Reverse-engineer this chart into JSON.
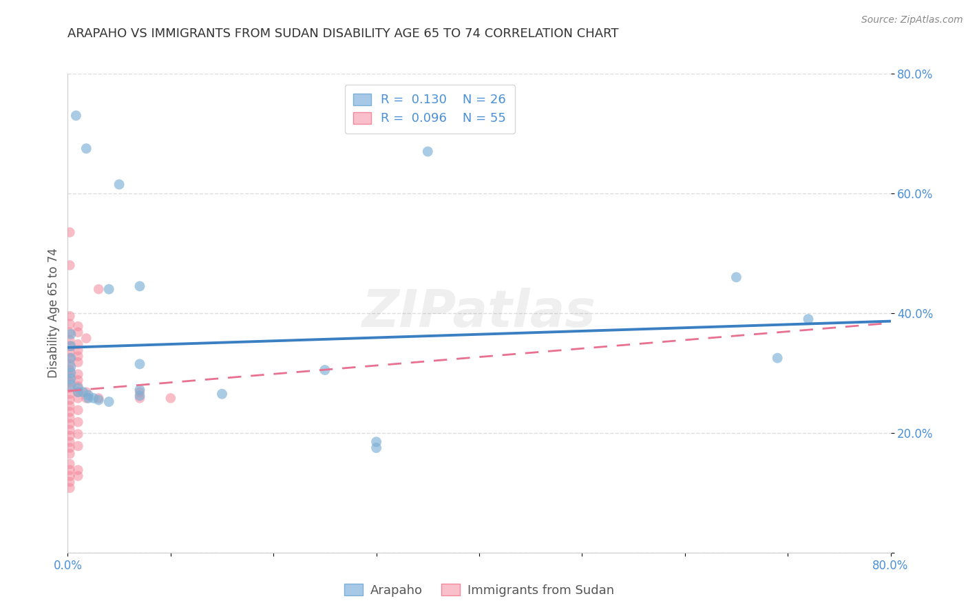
{
  "title": "ARAPAHO VS IMMIGRANTS FROM SUDAN DISABILITY AGE 65 TO 74 CORRELATION CHART",
  "source": "Source: ZipAtlas.com",
  "ylabel": "Disability Age 65 to 74",
  "xlim": [
    0.0,
    0.8
  ],
  "ylim": [
    0.0,
    0.8
  ],
  "arapaho_color": "#7bafd4",
  "sudan_color": "#f4879a",
  "arapaho_fill": "#a8c8e8",
  "sudan_fill": "#f9c0cc",
  "arapaho_points": [
    [
      0.008,
      0.73
    ],
    [
      0.018,
      0.675
    ],
    [
      0.003,
      0.365
    ],
    [
      0.003,
      0.345
    ],
    [
      0.003,
      0.325
    ],
    [
      0.003,
      0.31
    ],
    [
      0.003,
      0.3
    ],
    [
      0.003,
      0.29
    ],
    [
      0.003,
      0.28
    ],
    [
      0.01,
      0.275
    ],
    [
      0.01,
      0.268
    ],
    [
      0.015,
      0.268
    ],
    [
      0.02,
      0.263
    ],
    [
      0.02,
      0.258
    ],
    [
      0.025,
      0.258
    ],
    [
      0.03,
      0.255
    ],
    [
      0.04,
      0.252
    ],
    [
      0.04,
      0.44
    ],
    [
      0.05,
      0.615
    ],
    [
      0.07,
      0.445
    ],
    [
      0.07,
      0.315
    ],
    [
      0.07,
      0.272
    ],
    [
      0.07,
      0.262
    ],
    [
      0.15,
      0.265
    ],
    [
      0.25,
      0.305
    ],
    [
      0.35,
      0.67
    ],
    [
      0.3,
      0.185
    ],
    [
      0.3,
      0.175
    ],
    [
      0.65,
      0.46
    ],
    [
      0.72,
      0.39
    ],
    [
      0.69,
      0.325
    ]
  ],
  "sudan_points": [
    [
      0.002,
      0.535
    ],
    [
      0.002,
      0.48
    ],
    [
      0.002,
      0.395
    ],
    [
      0.002,
      0.382
    ],
    [
      0.002,
      0.368
    ],
    [
      0.002,
      0.355
    ],
    [
      0.002,
      0.345
    ],
    [
      0.002,
      0.335
    ],
    [
      0.002,
      0.325
    ],
    [
      0.002,
      0.315
    ],
    [
      0.002,
      0.305
    ],
    [
      0.002,
      0.295
    ],
    [
      0.002,
      0.285
    ],
    [
      0.002,
      0.275
    ],
    [
      0.002,
      0.265
    ],
    [
      0.002,
      0.255
    ],
    [
      0.002,
      0.245
    ],
    [
      0.002,
      0.235
    ],
    [
      0.002,
      0.225
    ],
    [
      0.002,
      0.215
    ],
    [
      0.002,
      0.205
    ],
    [
      0.002,
      0.195
    ],
    [
      0.002,
      0.185
    ],
    [
      0.002,
      0.175
    ],
    [
      0.002,
      0.165
    ],
    [
      0.002,
      0.148
    ],
    [
      0.002,
      0.138
    ],
    [
      0.002,
      0.128
    ],
    [
      0.002,
      0.118
    ],
    [
      0.002,
      0.108
    ],
    [
      0.01,
      0.378
    ],
    [
      0.01,
      0.368
    ],
    [
      0.01,
      0.348
    ],
    [
      0.01,
      0.338
    ],
    [
      0.01,
      0.328
    ],
    [
      0.01,
      0.318
    ],
    [
      0.01,
      0.298
    ],
    [
      0.01,
      0.288
    ],
    [
      0.01,
      0.278
    ],
    [
      0.01,
      0.268
    ],
    [
      0.01,
      0.258
    ],
    [
      0.01,
      0.238
    ],
    [
      0.01,
      0.218
    ],
    [
      0.01,
      0.198
    ],
    [
      0.01,
      0.178
    ],
    [
      0.01,
      0.138
    ],
    [
      0.01,
      0.128
    ],
    [
      0.018,
      0.358
    ],
    [
      0.018,
      0.268
    ],
    [
      0.018,
      0.258
    ],
    [
      0.03,
      0.44
    ],
    [
      0.03,
      0.258
    ],
    [
      0.07,
      0.268
    ],
    [
      0.07,
      0.258
    ],
    [
      0.1,
      0.258
    ]
  ],
  "background_color": "#ffffff",
  "grid_color": "#dddddd",
  "watermark_text": "ZIPatlas",
  "watermark_alpha": 0.12
}
